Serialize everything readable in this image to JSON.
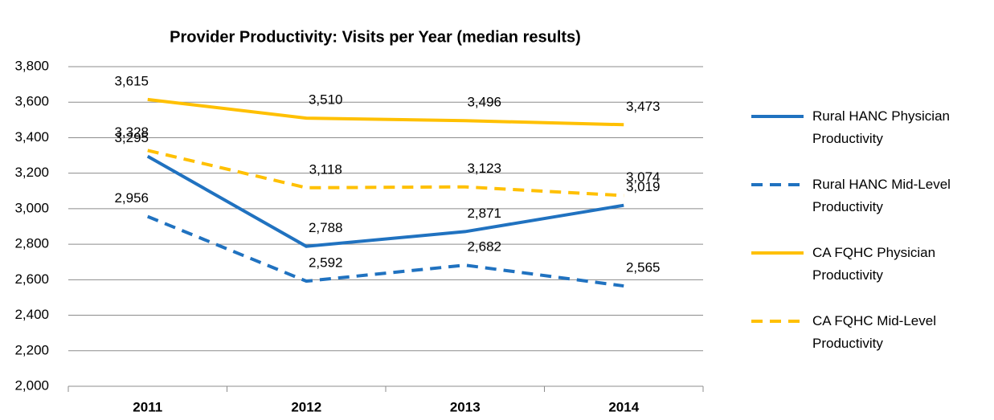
{
  "chart_data": {
    "type": "line",
    "title": "Provider Productivity: Visits per Year (median results)",
    "categories": [
      "2011",
      "2012",
      "2013",
      "2014"
    ],
    "series": [
      {
        "name": "Rural HANC Physician Productivity",
        "color": "#2072c0",
        "dash": false,
        "values": [
          3295,
          2788,
          2871,
          3019
        ],
        "value_labels": [
          "3,295",
          "2,788",
          "2,871",
          "3,019"
        ]
      },
      {
        "name": "Rural HANC Mid-Level Productivity",
        "color": "#2072c0",
        "dash": true,
        "values": [
          2956,
          2592,
          2682,
          2565
        ],
        "value_labels": [
          "2,956",
          "2,592",
          "2,682",
          "2,565"
        ]
      },
      {
        "name": "CA FQHC Physician Productivity",
        "color": "#ffc000",
        "dash": false,
        "values": [
          3615,
          3510,
          3496,
          3473
        ],
        "value_labels": [
          "3,615",
          "3,510",
          "3,496",
          "3,473"
        ]
      },
      {
        "name": "CA FQHC Mid-Level Productivity",
        "color": "#ffc000",
        "dash": true,
        "values": [
          3328,
          3118,
          3123,
          3074
        ],
        "value_labels": [
          "3,328",
          "3,118",
          "3,123",
          "3,074"
        ]
      }
    ],
    "ylim": [
      2000,
      3800
    ],
    "yticks": [
      {
        "value": 2000,
        "label": "2,000"
      },
      {
        "value": 2200,
        "label": "2,200"
      },
      {
        "value": 2400,
        "label": "2,400"
      },
      {
        "value": 2600,
        "label": "2,600"
      },
      {
        "value": 2800,
        "label": "2,800"
      },
      {
        "value": 3000,
        "label": "3,000"
      },
      {
        "value": 3200,
        "label": "3,200"
      },
      {
        "value": 3400,
        "label": "3,400"
      },
      {
        "value": 3600,
        "label": "3,600"
      },
      {
        "value": 3800,
        "label": "3,800"
      }
    ],
    "grid": true,
    "legend": "right"
  }
}
